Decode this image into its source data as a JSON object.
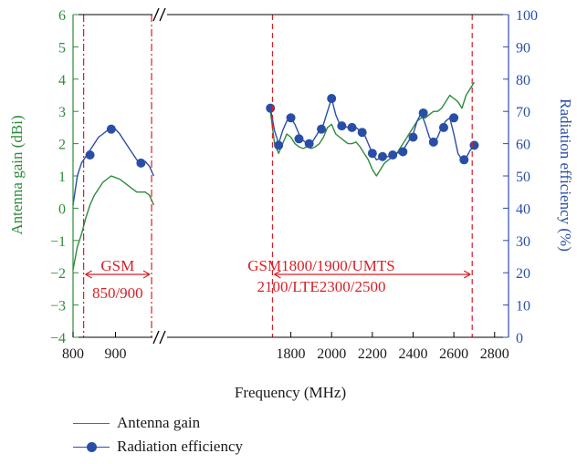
{
  "colors": {
    "gain": "#2e8b3a",
    "efficiency": "#2a4ea8",
    "markers": "#d81f26",
    "axis": "#000000"
  },
  "chart_data": {
    "type": "line",
    "xlabel": "Frequency (MHz)",
    "ylabel_left": "Antenna gain (dBi)",
    "ylabel_right": "Radiation efficiency (%)",
    "x_ticks": [
      "800",
      "900",
      "1800",
      "2000",
      "2200",
      "2400",
      "2600",
      "2800"
    ],
    "y_left_ticks": [
      "6",
      "5",
      "4",
      "3",
      "2",
      "1",
      "0",
      "−1",
      "−2",
      "−3",
      "−4"
    ],
    "y_right_ticks": [
      "100",
      "90",
      "80",
      "70",
      "60",
      "50",
      "40",
      "30",
      "20",
      "10",
      "0"
    ],
    "ylim_left": [
      -4,
      6
    ],
    "ylim_right": [
      0,
      100
    ],
    "axis_break": "between 960 MHz and 1700 MHz",
    "segments": [
      {
        "name": "low band",
        "xlim": [
          800,
          1000
        ]
      },
      {
        "name": "high band",
        "xlim": [
          1700,
          2800
        ]
      }
    ],
    "series": [
      {
        "name": "Antenna gain",
        "axis": "left",
        "marker": false,
        "segments": [
          {
            "x": [
              800,
              810,
              820,
              830,
              840,
              850,
              860,
              870,
              880,
              890,
              900,
              910,
              920,
              930,
              940,
              950,
              960,
              970,
              980,
              990
            ],
            "y": [
              -1.9,
              -1.2,
              -0.8,
              -0.3,
              0.1,
              0.4,
              0.6,
              0.8,
              0.9,
              1.0,
              0.95,
              0.9,
              0.8,
              0.7,
              0.6,
              0.5,
              0.5,
              0.5,
              0.4,
              0.1
            ]
          },
          {
            "x": [
              1700,
              1720,
              1740,
              1760,
              1780,
              1800,
              1820,
              1840,
              1860,
              1880,
              1900,
              1920,
              1940,
              1960,
              1980,
              2000,
              2020,
              2040,
              2060,
              2080,
              2100,
              2120,
              2140,
              2160,
              2180,
              2200,
              2220,
              2240,
              2260,
              2280,
              2300,
              2320,
              2340,
              2360,
              2380,
              2400,
              2420,
              2440,
              2460,
              2480,
              2500,
              2520,
              2540,
              2560,
              2580,
              2600,
              2620,
              2640,
              2660,
              2680,
              2700
            ],
            "y": [
              3.0,
              2.0,
              1.7,
              2.0,
              2.3,
              2.2,
              2.0,
              1.9,
              1.85,
              1.9,
              1.85,
              1.9,
              2.0,
              2.2,
              2.5,
              2.6,
              2.3,
              2.2,
              2.1,
              2.0,
              2.0,
              2.05,
              1.9,
              1.7,
              1.5,
              1.2,
              1.0,
              1.2,
              1.4,
              1.5,
              1.6,
              1.7,
              1.9,
              2.1,
              2.3,
              2.5,
              2.7,
              2.8,
              2.8,
              2.9,
              3.0,
              3.0,
              3.1,
              3.3,
              3.5,
              3.4,
              3.3,
              3.1,
              3.5,
              3.7,
              3.9
            ]
          }
        ]
      },
      {
        "name": "Radiation efficiency",
        "axis": "right",
        "marker": true,
        "segments": [
          {
            "x": [
              800,
              810,
              820,
              830,
              840,
              850,
              860,
              870,
              880,
              890,
              900,
              910,
              920,
              930,
              940,
              950,
              960,
              970,
              980,
              990
            ],
            "y": [
              41,
              50,
              54,
              56,
              58,
              60,
              62,
              63,
              64,
              65,
              64.5,
              63,
              61,
              59,
              57,
              55,
              54,
              54.5,
              53,
              50
            ],
            "marker_x": [
              840,
              890,
              960
            ],
            "marker_y": [
              56.5,
              64.5,
              54
            ]
          },
          {
            "x": [
              1700,
              1720,
              1740,
              1760,
              1780,
              1800,
              1820,
              1840,
              1860,
              1880,
              1900,
              1920,
              1940,
              1960,
              1980,
              2000,
              2020,
              2040,
              2060,
              2080,
              2100,
              2120,
              2140,
              2160,
              2180,
              2200,
              2220,
              2240,
              2260,
              2280,
              2300,
              2320,
              2340,
              2360,
              2380,
              2400,
              2420,
              2440,
              2460,
              2480,
              2500,
              2520,
              2540,
              2560,
              2580,
              2600,
              2620,
              2640,
              2660,
              2680,
              2700
            ],
            "y": [
              71,
              64,
              60,
              64,
              67,
              68,
              66,
              63,
              61,
              60,
              60,
              62,
              64,
              66,
              70,
              74,
              69,
              66,
              65.5,
              65,
              65,
              65,
              64,
              63,
              60,
              57,
              55,
              55.5,
              56,
              56,
              56.5,
              57,
              57.5,
              59,
              61,
              63,
              67,
              69.5,
              66,
              62,
              60,
              62,
              65,
              67,
              68,
              63,
              57,
              55,
              55.5,
              58,
              59
            ],
            "marker_x": [
              1700,
              1740,
              1800,
              1840,
              1890,
              1950,
              2000,
              2050,
              2100,
              2150,
              2200,
              2250,
              2300,
              2350,
              2400,
              2450,
              2500,
              2550,
              2600,
              2650,
              2700
            ],
            "marker_y": [
              71,
              59.5,
              68,
              61.5,
              60,
              64.5,
              74,
              65.5,
              65,
              63.5,
              57,
              56,
              56.5,
              57.5,
              62,
              69.5,
              60.5,
              65,
              68,
              55,
              59.5
            ]
          }
        ]
      }
    ],
    "markers": [
      {
        "x": 825,
        "style": "dash-dot"
      },
      {
        "x": 985,
        "style": "dash-dot"
      },
      {
        "x": 1710,
        "style": "dashed"
      },
      {
        "x": 2690,
        "style": "dashed"
      }
    ],
    "annotations": [
      {
        "band": "low",
        "line1": "GSM",
        "line2": "850/900"
      },
      {
        "band": "high",
        "line1": "GSM1800/1900/UMTS",
        "line2": "2100/LTE2300/2500"
      }
    ]
  },
  "legend": [
    {
      "label": "Antenna gain"
    },
    {
      "label": "Radiation efficiency"
    }
  ]
}
